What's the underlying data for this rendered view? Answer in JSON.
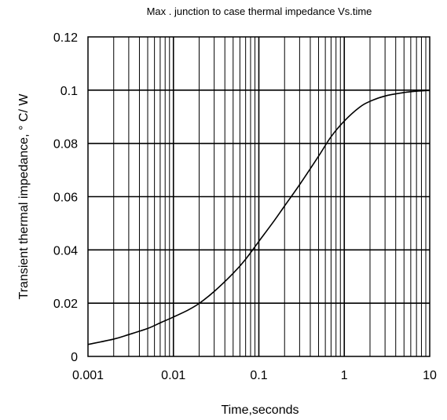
{
  "chart_data": {
    "type": "line",
    "title": "Max . junction to case thermal impedance Vs.time",
    "xlabel": "Time,seconds",
    "ylabel": "Transient thermal  impedance, °  C/ W",
    "x_scale": "log",
    "xlim": [
      0.001,
      10
    ],
    "ylim": [
      0,
      0.12
    ],
    "grid": true,
    "x_ticks": [
      {
        "value": 0.001,
        "label": "0.001"
      },
      {
        "value": 0.01,
        "label": "0.01"
      },
      {
        "value": 0.1,
        "label": "0.1"
      },
      {
        "value": 1,
        "label": "1"
      },
      {
        "value": 10,
        "label": "10"
      }
    ],
    "y_ticks": [
      {
        "value": 0,
        "label": "0"
      },
      {
        "value": 0.02,
        "label": "0.02"
      },
      {
        "value": 0.04,
        "label": "0.04"
      },
      {
        "value": 0.06,
        "label": "0.06"
      },
      {
        "value": 0.08,
        "label": "0.08"
      },
      {
        "value": 0.1,
        "label": "0.1"
      },
      {
        "value": 0.12,
        "label": "0.12"
      }
    ],
    "series": [
      {
        "color": "#000000",
        "x": [
          0.001,
          0.002,
          0.003,
          0.005,
          0.007,
          0.01,
          0.015,
          0.02,
          0.03,
          0.05,
          0.07,
          0.1,
          0.15,
          0.2,
          0.3,
          0.5,
          0.7,
          1,
          1.5,
          2,
          3,
          5,
          7,
          10
        ],
        "y": [
          0.0045,
          0.0065,
          0.0082,
          0.0105,
          0.0126,
          0.0148,
          0.0175,
          0.0199,
          0.0244,
          0.0312,
          0.0365,
          0.0432,
          0.0508,
          0.0565,
          0.0645,
          0.0752,
          0.0825,
          0.0884,
          0.0935,
          0.0958,
          0.0978,
          0.0991,
          0.0996,
          0.0999
        ]
      }
    ]
  }
}
